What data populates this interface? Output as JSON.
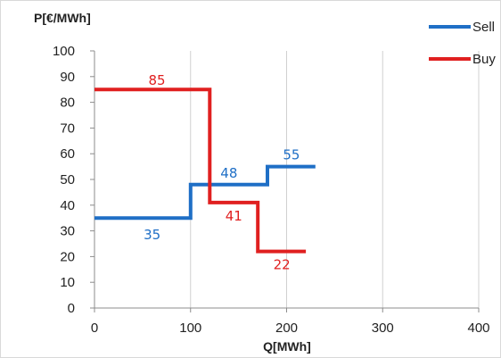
{
  "chart_data": {
    "type": "line",
    "step": true,
    "title": "",
    "xlabel": "Q[MWh]",
    "ylabel": "P[€/MWh]",
    "xlim": [
      0,
      400
    ],
    "ylim": [
      0,
      100
    ],
    "xticks": [
      0,
      100,
      200,
      300,
      400
    ],
    "yticks": [
      0,
      10,
      20,
      30,
      40,
      50,
      60,
      70,
      80,
      90,
      100
    ],
    "grid": "vertical",
    "legend_position": "top-right",
    "series": [
      {
        "name": "Sell",
        "color": "#1f6fc6",
        "points": [
          [
            0,
            35
          ],
          [
            100,
            35
          ],
          [
            100,
            48
          ],
          [
            180,
            48
          ],
          [
            180,
            55
          ],
          [
            230,
            55
          ]
        ],
        "labels": [
          {
            "text": "35",
            "x": 60,
            "y": 35
          },
          {
            "text": "48",
            "x": 140,
            "y": 48
          },
          {
            "text": "55",
            "x": 205,
            "y": 55
          }
        ]
      },
      {
        "name": "Buy",
        "color": "#e02020",
        "points": [
          [
            0,
            85
          ],
          [
            120,
            85
          ],
          [
            120,
            41
          ],
          [
            170,
            41
          ],
          [
            170,
            22
          ],
          [
            220,
            22
          ]
        ],
        "labels": [
          {
            "text": "85",
            "x": 65,
            "y": 85
          },
          {
            "text": "41",
            "x": 145,
            "y": 41
          },
          {
            "text": "22",
            "x": 195,
            "y": 22
          }
        ]
      }
    ]
  }
}
